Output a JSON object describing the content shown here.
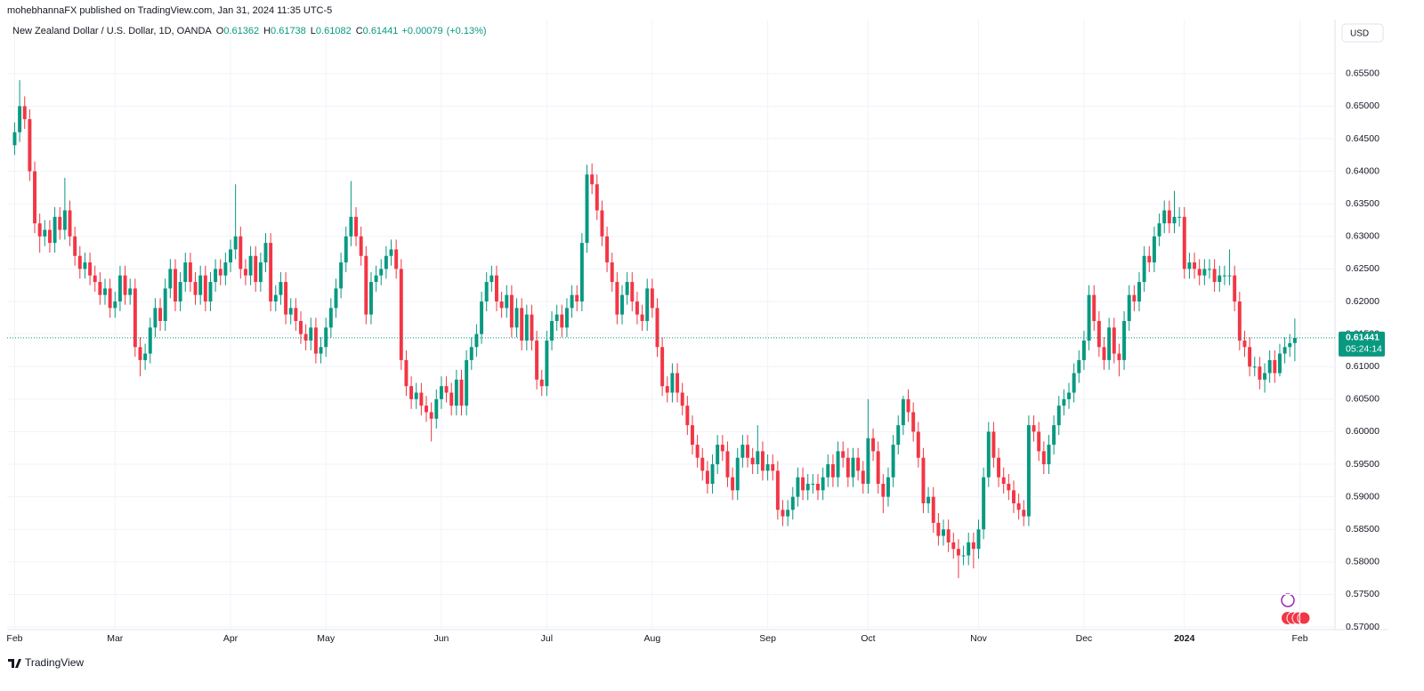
{
  "page": {
    "header": "mohebhannaFX published on TradingView.com, Jan 31, 2024 11:35 UTC-5",
    "brand": "TradingView"
  },
  "chart_data": {
    "type": "candlestick",
    "title": "New Zealand Dollar / U.S. Dollar, 1D, OANDA",
    "ohlc_labels": [
      "O",
      "H",
      "L",
      "C"
    ],
    "change": "+0.00079",
    "change_pct": "(+0.13%)",
    "currency": "USD",
    "countdown": "05:24:14",
    "up_color": "#089981",
    "down_color": "#f23645",
    "grid": true,
    "open": [
      0.644,
      0.646,
      0.65,
      0.648,
      0.64,
      0.632,
      0.63,
      0.631,
      0.629,
      0.633,
      0.631,
      0.634,
      0.63,
      0.627,
      0.625,
      0.626,
      0.624,
      0.623,
      0.621,
      0.622,
      0.619,
      0.62,
      0.624,
      0.621,
      0.622,
      0.613,
      0.611,
      0.612,
      0.616,
      0.619,
      0.617,
      0.622,
      0.625,
      0.62,
      0.623,
      0.626,
      0.623,
      0.621,
      0.624,
      0.62,
      0.623,
      0.625,
      0.624,
      0.626,
      0.628,
      0.63,
      0.625,
      0.624,
      0.627,
      0.623,
      0.626,
      0.629,
      0.62,
      0.621,
      0.623,
      0.618,
      0.619,
      0.617,
      0.615,
      0.614,
      0.616,
      0.612,
      0.613,
      0.616,
      0.619,
      0.622,
      0.626,
      0.63,
      0.633,
      0.63,
      0.627,
      0.618,
      0.623,
      0.624,
      0.625,
      0.627,
      0.628,
      0.625,
      0.611,
      0.607,
      0.605,
      0.606,
      0.604,
      0.603,
      0.602,
      0.605,
      0.607,
      0.606,
      0.604,
      0.608,
      0.604,
      0.611,
      0.613,
      0.615,
      0.62,
      0.623,
      0.624,
      0.62,
      0.619,
      0.621,
      0.616,
      0.619,
      0.614,
      0.618,
      0.614,
      0.608,
      0.607,
      0.614,
      0.617,
      0.618,
      0.616,
      0.619,
      0.621,
      0.62,
      0.629,
      0.6395,
      0.638,
      0.634,
      0.63,
      0.626,
      0.623,
      0.618,
      0.621,
      0.623,
      0.62,
      0.618,
      0.617,
      0.622,
      0.619,
      0.613,
      0.607,
      0.606,
      0.609,
      0.606,
      0.604,
      0.601,
      0.598,
      0.596,
      0.594,
      0.592,
      0.595,
      0.598,
      0.597,
      0.593,
      0.591,
      0.596,
      0.598,
      0.596,
      0.595,
      0.597,
      0.594,
      0.595,
      0.594,
      0.588,
      0.587,
      0.588,
      0.59,
      0.593,
      0.591,
      0.592,
      0.592,
      0.591,
      0.593,
      0.595,
      0.593,
      0.597,
      0.596,
      0.593,
      0.596,
      0.594,
      0.592,
      0.599,
      0.597,
      0.592,
      0.59,
      0.593,
      0.598,
      0.601,
      0.605,
      0.603,
      0.6,
      0.596,
      0.589,
      0.59,
      0.586,
      0.584,
      0.585,
      0.583,
      0.582,
      0.581,
      0.581,
      0.583,
      0.582,
      0.585,
      0.593,
      0.6,
      0.596,
      0.593,
      0.592,
      0.591,
      0.589,
      0.588,
      0.587,
      0.601,
      0.6,
      0.597,
      0.595,
      0.598,
      0.601,
      0.604,
      0.605,
      0.606,
      0.609,
      0.611,
      0.614,
      0.621,
      0.617,
      0.613,
      0.611,
      0.616,
      0.612,
      0.611,
      0.617,
      0.621,
      0.62,
      0.623,
      0.627,
      0.626,
      0.63,
      0.632,
      0.634,
      0.632,
      0.633,
      0.633,
      0.625,
      0.626,
      0.625,
      0.624,
      0.625,
      0.625,
      0.623,
      0.624,
      0.624,
      0.624,
      0.62,
      0.614,
      0.613,
      0.61,
      0.61,
      0.608,
      0.609,
      0.611,
      0.609,
      0.612,
      0.613,
      0.61362
    ],
    "high": [
      0.6475,
      0.654,
      0.6515,
      0.6495,
      0.6415,
      0.6335,
      0.6325,
      0.6325,
      0.6345,
      0.6345,
      0.639,
      0.6355,
      0.6315,
      0.6285,
      0.6275,
      0.6275,
      0.6255,
      0.6245,
      0.6235,
      0.6235,
      0.6215,
      0.6255,
      0.6255,
      0.6235,
      0.6235,
      0.6145,
      0.6135,
      0.6175,
      0.6205,
      0.6205,
      0.6235,
      0.6265,
      0.6265,
      0.6245,
      0.6275,
      0.6275,
      0.6245,
      0.6255,
      0.6255,
      0.6245,
      0.6265,
      0.6265,
      0.6275,
      0.6295,
      0.638,
      0.6315,
      0.6265,
      0.6285,
      0.6285,
      0.6275,
      0.6305,
      0.6305,
      0.6225,
      0.6245,
      0.6245,
      0.6205,
      0.6205,
      0.6185,
      0.6165,
      0.6175,
      0.6175,
      0.6145,
      0.6175,
      0.6205,
      0.6235,
      0.6275,
      0.6315,
      0.6385,
      0.6345,
      0.6315,
      0.6285,
      0.6245,
      0.6255,
      0.6265,
      0.6285,
      0.6295,
      0.6295,
      0.6265,
      0.6125,
      0.6085,
      0.6075,
      0.6075,
      0.6055,
      0.6045,
      0.6065,
      0.6085,
      0.6085,
      0.6075,
      0.6095,
      0.6095,
      0.6125,
      0.6145,
      0.6165,
      0.6215,
      0.6245,
      0.6255,
      0.6255,
      0.6215,
      0.6225,
      0.6225,
      0.6205,
      0.6205,
      0.6195,
      0.6195,
      0.6155,
      0.6095,
      0.6155,
      0.6185,
      0.6195,
      0.6195,
      0.6205,
      0.6225,
      0.6225,
      0.6305,
      0.641,
      0.6412,
      0.6395,
      0.6355,
      0.6315,
      0.6275,
      0.6245,
      0.6225,
      0.6245,
      0.6245,
      0.6215,
      0.6195,
      0.6235,
      0.6235,
      0.6205,
      0.6145,
      0.6085,
      0.6105,
      0.6105,
      0.6075,
      0.6055,
      0.6025,
      0.5995,
      0.5975,
      0.5955,
      0.5965,
      0.5995,
      0.5995,
      0.5985,
      0.5945,
      0.5975,
      0.5995,
      0.5995,
      0.5975,
      0.601,
      0.5985,
      0.5965,
      0.5965,
      0.5955,
      0.5895,
      0.5895,
      0.5915,
      0.5945,
      0.5945,
      0.5935,
      0.5935,
      0.5935,
      0.5945,
      0.5965,
      0.5965,
      0.5985,
      0.5985,
      0.5975,
      0.5975,
      0.5975,
      0.5955,
      0.605,
      0.6005,
      0.5985,
      0.5935,
      0.5945,
      0.5995,
      0.6025,
      0.6055,
      0.6065,
      0.6045,
      0.6015,
      0.5975,
      0.5915,
      0.5915,
      0.5875,
      0.5865,
      0.5865,
      0.5845,
      0.5835,
      0.5825,
      0.5845,
      0.5845,
      0.5865,
      0.5945,
      0.6015,
      0.6015,
      0.5975,
      0.5945,
      0.5935,
      0.5925,
      0.5905,
      0.5895,
      0.6025,
      0.6025,
      0.6015,
      0.5985,
      0.5995,
      0.6025,
      0.6055,
      0.6065,
      0.6075,
      0.6105,
      0.6125,
      0.6155,
      0.6225,
      0.6225,
      0.6185,
      0.6145,
      0.6175,
      0.6175,
      0.6135,
      0.6185,
      0.6225,
      0.6225,
      0.6245,
      0.6285,
      0.6285,
      0.6315,
      0.6335,
      0.6355,
      0.6355,
      0.637,
      0.6345,
      0.6345,
      0.6275,
      0.6275,
      0.6265,
      0.6265,
      0.6265,
      0.6265,
      0.6255,
      0.6255,
      0.628,
      0.6255,
      0.6215,
      0.6155,
      0.6145,
      0.6115,
      0.6115,
      0.6105,
      0.6125,
      0.6125,
      0.6135,
      0.6145,
      0.615,
      0.61738
    ],
    "low": [
      0.6425,
      0.6445,
      0.6465,
      0.6385,
      0.6305,
      0.6275,
      0.6285,
      0.6275,
      0.6275,
      0.6295,
      0.6295,
      0.6285,
      0.6255,
      0.6235,
      0.6235,
      0.6225,
      0.6215,
      0.6195,
      0.6195,
      0.6175,
      0.6175,
      0.6185,
      0.6195,
      0.6195,
      0.6115,
      0.6085,
      0.6095,
      0.6105,
      0.6145,
      0.6155,
      0.6155,
      0.6205,
      0.6185,
      0.6185,
      0.6215,
      0.6215,
      0.6195,
      0.6195,
      0.6185,
      0.6185,
      0.6215,
      0.6225,
      0.6225,
      0.6245,
      0.6265,
      0.6235,
      0.6225,
      0.6225,
      0.6215,
      0.6215,
      0.6245,
      0.6185,
      0.6185,
      0.6195,
      0.6165,
      0.6165,
      0.6155,
      0.6135,
      0.6125,
      0.6125,
      0.6105,
      0.6105,
      0.6115,
      0.6145,
      0.6175,
      0.6205,
      0.6245,
      0.6285,
      0.6285,
      0.6255,
      0.6165,
      0.6165,
      0.6215,
      0.6225,
      0.6235,
      0.6255,
      0.6235,
      0.6095,
      0.6055,
      0.6035,
      0.6035,
      0.6025,
      0.6015,
      0.5985,
      0.6005,
      0.6035,
      0.6045,
      0.6025,
      0.6025,
      0.6025,
      0.6025,
      0.6095,
      0.6115,
      0.6135,
      0.6185,
      0.6215,
      0.6185,
      0.6175,
      0.6175,
      0.6145,
      0.6145,
      0.6125,
      0.6125,
      0.6125,
      0.6065,
      0.6055,
      0.6055,
      0.6125,
      0.6155,
      0.6145,
      0.6145,
      0.6175,
      0.6185,
      0.6185,
      0.6275,
      0.6365,
      0.6325,
      0.6285,
      0.6245,
      0.6215,
      0.6165,
      0.6165,
      0.6195,
      0.6185,
      0.6165,
      0.6155,
      0.6155,
      0.6175,
      0.6115,
      0.6055,
      0.6045,
      0.6045,
      0.6045,
      0.6025,
      0.5995,
      0.5965,
      0.5945,
      0.5925,
      0.5905,
      0.5905,
      0.5935,
      0.5955,
      0.5915,
      0.5895,
      0.5895,
      0.5945,
      0.5945,
      0.5935,
      0.5935,
      0.5925,
      0.5925,
      0.5925,
      0.5865,
      0.5855,
      0.5855,
      0.5865,
      0.5885,
      0.5895,
      0.5895,
      0.5905,
      0.5895,
      0.5895,
      0.5915,
      0.5915,
      0.5915,
      0.5945,
      0.5915,
      0.5915,
      0.5925,
      0.5905,
      0.5905,
      0.5955,
      0.5905,
      0.5875,
      0.5885,
      0.5915,
      0.5965,
      0.5995,
      0.6015,
      0.5985,
      0.5945,
      0.5875,
      0.5875,
      0.5845,
      0.5825,
      0.5825,
      0.5815,
      0.5805,
      0.5775,
      0.5795,
      0.5795,
      0.579,
      0.5805,
      0.5835,
      0.5915,
      0.5945,
      0.5915,
      0.5905,
      0.5895,
      0.5875,
      0.5865,
      0.5855,
      0.5855,
      0.5985,
      0.5955,
      0.5935,
      0.5935,
      0.5965,
      0.5995,
      0.6025,
      0.6035,
      0.6045,
      0.6075,
      0.6095,
      0.6125,
      0.6155,
      0.6115,
      0.6095,
      0.6095,
      0.6105,
      0.6085,
      0.6095,
      0.6155,
      0.6185,
      0.6185,
      0.6215,
      0.6245,
      0.6245,
      0.6285,
      0.6305,
      0.6305,
      0.6305,
      0.6315,
      0.6235,
      0.6235,
      0.6235,
      0.6225,
      0.6225,
      0.6235,
      0.6215,
      0.6215,
      0.6225,
      0.6225,
      0.6185,
      0.6125,
      0.6115,
      0.6085,
      0.6085,
      0.6065,
      0.606,
      0.6075,
      0.6075,
      0.6085,
      0.6105,
      0.6115,
      0.61082
    ],
    "close": [
      0.646,
      0.65,
      0.648,
      0.64,
      0.632,
      0.63,
      0.631,
      0.629,
      0.633,
      0.631,
      0.634,
      0.63,
      0.627,
      0.625,
      0.626,
      0.624,
      0.623,
      0.621,
      0.622,
      0.619,
      0.62,
      0.624,
      0.621,
      0.622,
      0.613,
      0.611,
      0.612,
      0.616,
      0.619,
      0.617,
      0.622,
      0.625,
      0.62,
      0.623,
      0.626,
      0.623,
      0.621,
      0.624,
      0.62,
      0.623,
      0.625,
      0.624,
      0.626,
      0.628,
      0.63,
      0.625,
      0.624,
      0.627,
      0.623,
      0.626,
      0.629,
      0.62,
      0.621,
      0.623,
      0.618,
      0.619,
      0.617,
      0.615,
      0.614,
      0.616,
      0.612,
      0.613,
      0.616,
      0.619,
      0.622,
      0.626,
      0.63,
      0.633,
      0.63,
      0.627,
      0.618,
      0.623,
      0.624,
      0.625,
      0.627,
      0.628,
      0.625,
      0.611,
      0.607,
      0.605,
      0.606,
      0.604,
      0.603,
      0.602,
      0.605,
      0.607,
      0.606,
      0.604,
      0.608,
      0.604,
      0.611,
      0.613,
      0.615,
      0.62,
      0.623,
      0.624,
      0.62,
      0.619,
      0.621,
      0.616,
      0.619,
      0.614,
      0.618,
      0.614,
      0.608,
      0.607,
      0.614,
      0.617,
      0.618,
      0.616,
      0.619,
      0.621,
      0.62,
      0.629,
      0.6395,
      0.638,
      0.634,
      0.63,
      0.626,
      0.623,
      0.618,
      0.621,
      0.623,
      0.62,
      0.618,
      0.617,
      0.622,
      0.619,
      0.613,
      0.607,
      0.606,
      0.609,
      0.606,
      0.604,
      0.601,
      0.598,
      0.596,
      0.594,
      0.592,
      0.595,
      0.598,
      0.597,
      0.593,
      0.591,
      0.596,
      0.598,
      0.596,
      0.595,
      0.597,
      0.594,
      0.595,
      0.594,
      0.588,
      0.587,
      0.588,
      0.59,
      0.593,
      0.591,
      0.592,
      0.592,
      0.591,
      0.593,
      0.595,
      0.593,
      0.597,
      0.596,
      0.593,
      0.596,
      0.594,
      0.592,
      0.599,
      0.597,
      0.592,
      0.59,
      0.593,
      0.598,
      0.601,
      0.605,
      0.603,
      0.6,
      0.596,
      0.589,
      0.59,
      0.586,
      0.584,
      0.585,
      0.583,
      0.582,
      0.581,
      0.581,
      0.583,
      0.582,
      0.585,
      0.593,
      0.6,
      0.596,
      0.593,
      0.592,
      0.591,
      0.589,
      0.588,
      0.587,
      0.601,
      0.6,
      0.597,
      0.595,
      0.598,
      0.601,
      0.604,
      0.605,
      0.606,
      0.609,
      0.611,
      0.614,
      0.621,
      0.617,
      0.613,
      0.611,
      0.616,
      0.612,
      0.611,
      0.617,
      0.621,
      0.62,
      0.623,
      0.627,
      0.626,
      0.63,
      0.632,
      0.634,
      0.632,
      0.633,
      0.633,
      0.625,
      0.626,
      0.625,
      0.624,
      0.625,
      0.625,
      0.623,
      0.624,
      0.624,
      0.624,
      0.62,
      0.614,
      0.613,
      0.61,
      0.61,
      0.608,
      0.609,
      0.611,
      0.609,
      0.612,
      0.613,
      0.6136,
      0.61441
    ],
    "xlim": [
      -1.5,
      263
    ],
    "xticks": [
      {
        "value": 0,
        "label": "Feb"
      },
      {
        "value": 20,
        "label": "Mar"
      },
      {
        "value": 43,
        "label": "Apr"
      },
      {
        "value": 62,
        "label": "May"
      },
      {
        "value": 85,
        "label": "Jun"
      },
      {
        "value": 106,
        "label": "Jul"
      },
      {
        "value": 127,
        "label": "Aug"
      },
      {
        "value": 150,
        "label": "Sep"
      },
      {
        "value": 170,
        "label": "Oct"
      },
      {
        "value": 192,
        "label": "Nov"
      },
      {
        "value": 213,
        "label": "Dec"
      },
      {
        "value": 233,
        "label": "2024"
      },
      {
        "value": 256,
        "label": "Feb"
      }
    ],
    "ylim": [
      0.5696,
      0.6633
    ],
    "yticks": [
      {
        "value": 0.57,
        "label": "0.57000"
      },
      {
        "value": 0.575,
        "label": "0.57500"
      },
      {
        "value": 0.58,
        "label": "0.58000"
      },
      {
        "value": 0.585,
        "label": "0.58500"
      },
      {
        "value": 0.59,
        "label": "0.59000"
      },
      {
        "value": 0.595,
        "label": "0.59500"
      },
      {
        "value": 0.6,
        "label": "0.60000"
      },
      {
        "value": 0.605,
        "label": "0.60500"
      },
      {
        "value": 0.61,
        "label": "0.61000"
      },
      {
        "value": 0.615,
        "label": "0.61500"
      },
      {
        "value": 0.62,
        "label": "0.62000"
      },
      {
        "value": 0.625,
        "label": "0.62500"
      },
      {
        "value": 0.63,
        "label": "0.63000"
      },
      {
        "value": 0.635,
        "label": "0.63500"
      },
      {
        "value": 0.64,
        "label": "0.64000"
      },
      {
        "value": 0.645,
        "label": "0.64500"
      },
      {
        "value": 0.65,
        "label": "0.65000"
      },
      {
        "value": 0.655,
        "label": "0.65500"
      }
    ]
  }
}
